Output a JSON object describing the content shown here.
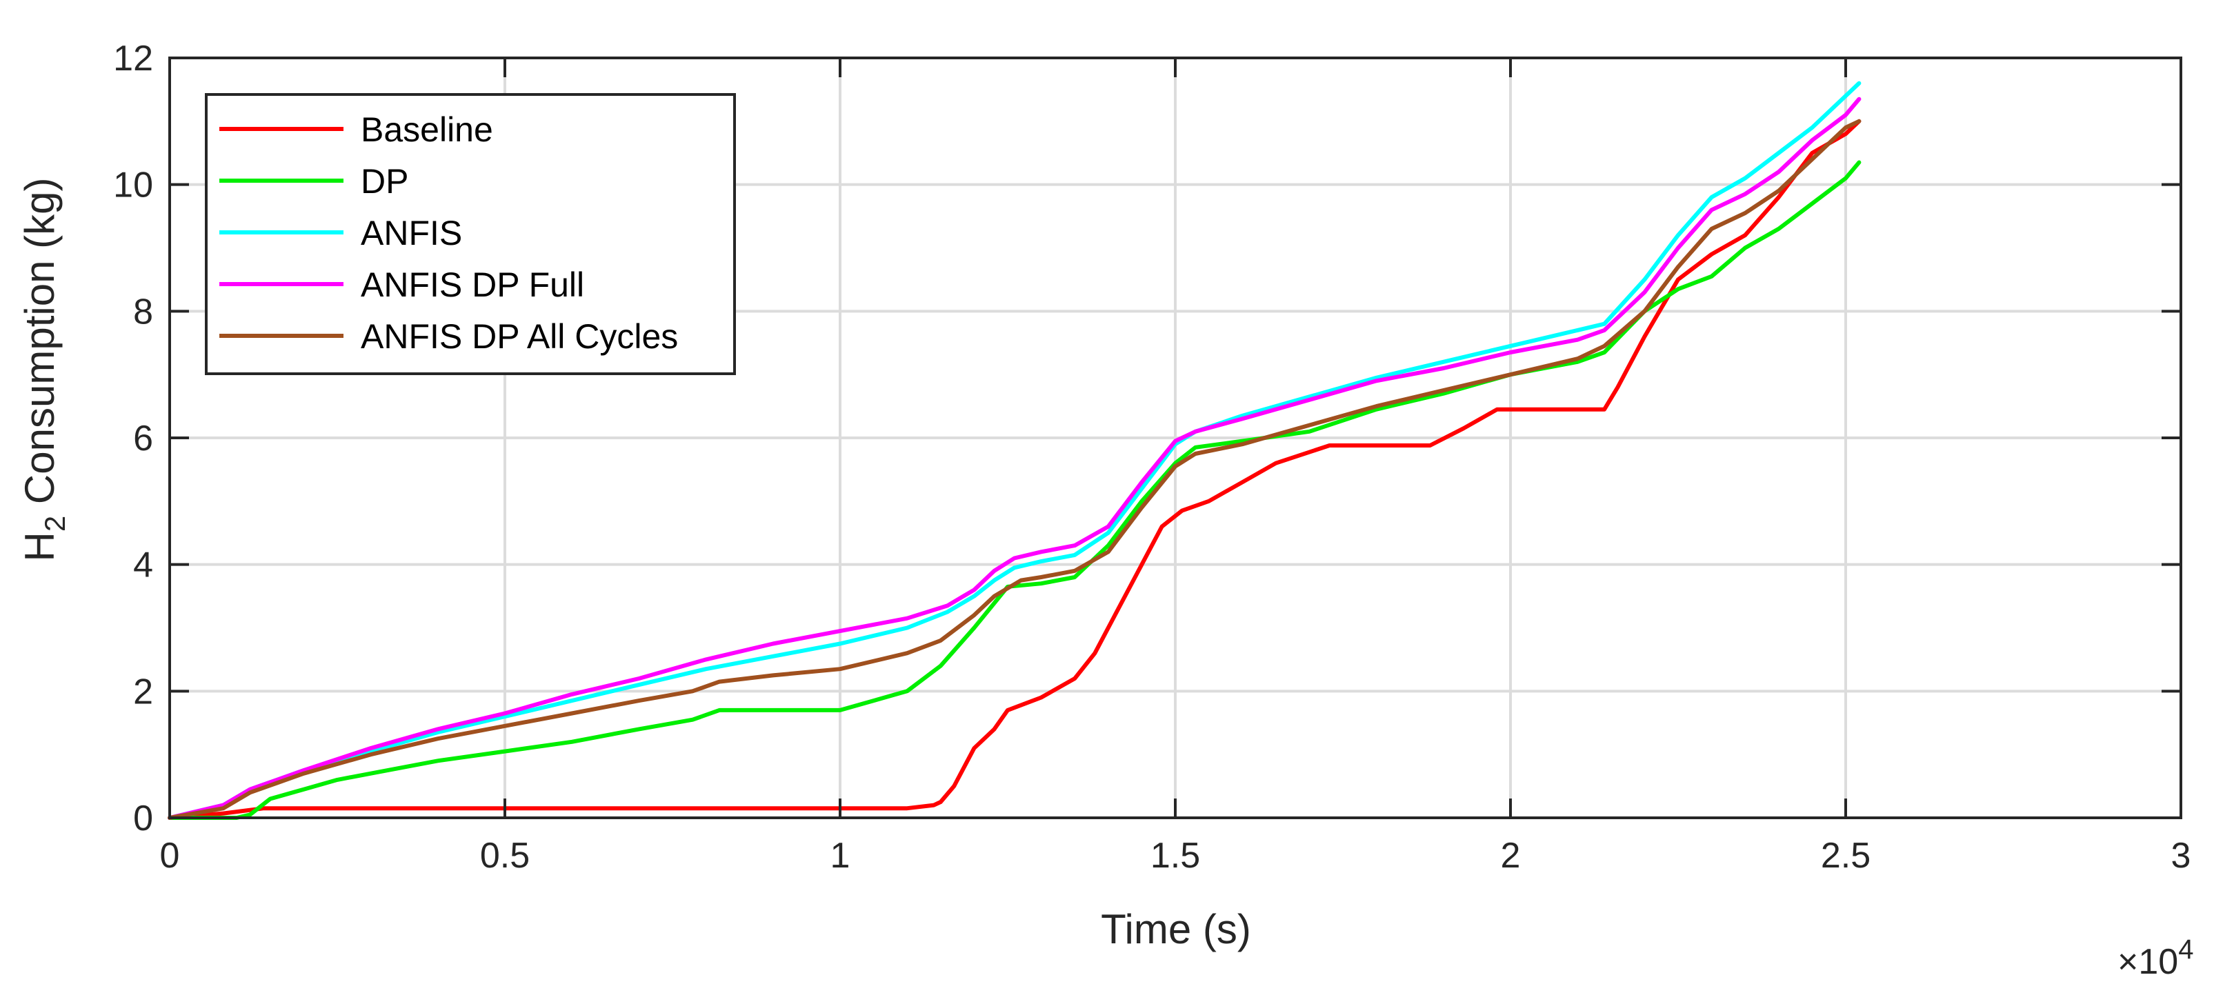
{
  "chart_data": {
    "type": "line",
    "title": "",
    "xlabel": "Time (s)",
    "ylabel": {
      "prefix": "H",
      "subscript": "2",
      "suffix": " Consumption (kg)"
    },
    "xlim": [
      0,
      30000
    ],
    "ylim": [
      0,
      12
    ],
    "x_ticks": [
      0,
      5000,
      10000,
      15000,
      20000,
      25000,
      30000
    ],
    "x_tick_labels": [
      "0",
      "0.5",
      "1",
      "1.5",
      "2",
      "2.5",
      "3"
    ],
    "x_exponent": {
      "base": "×10",
      "power": "4"
    },
    "y_ticks": [
      0,
      2,
      4,
      6,
      8,
      10,
      12
    ],
    "y_tick_labels": [
      "0",
      "2",
      "4",
      "6",
      "8",
      "10",
      "12"
    ],
    "grid": true,
    "legend_position": "top-left",
    "series": [
      {
        "name": "Baseline",
        "color": "#ff0000",
        "x": [
          0,
          800,
          1400,
          11000,
          11400,
          11500,
          11700,
          12000,
          12300,
          12500,
          13000,
          13500,
          13800,
          14100,
          14500,
          14800,
          15100,
          15500,
          16000,
          16500,
          17300,
          18800,
          19300,
          19800,
          21400,
          21600,
          22000,
          22500,
          23000,
          23500,
          24000,
          24500,
          25000,
          25200
        ],
        "y": [
          0,
          0.07,
          0.15,
          0.15,
          0.2,
          0.25,
          0.5,
          1.1,
          1.4,
          1.7,
          1.9,
          2.2,
          2.6,
          3.2,
          4.0,
          4.6,
          4.85,
          5.0,
          5.3,
          5.6,
          5.88,
          5.88,
          6.15,
          6.45,
          6.45,
          6.8,
          7.6,
          8.5,
          8.9,
          9.2,
          9.8,
          10.5,
          10.8,
          11.0
        ]
      },
      {
        "name": "DP",
        "color": "#00ee00",
        "x": [
          0,
          1000,
          1200,
          1500,
          2000,
          2500,
          3000,
          4000,
          5000,
          6000,
          7000,
          7800,
          8200,
          9000,
          10000,
          10500,
          11000,
          11500,
          12000,
          12500,
          13000,
          13500,
          14000,
          14500,
          15000,
          15300,
          16000,
          17000,
          18000,
          19000,
          20000,
          21000,
          21400,
          22000,
          22500,
          23000,
          23500,
          24000,
          24500,
          25000,
          25200
        ],
        "y": [
          0,
          0,
          0.05,
          0.3,
          0.45,
          0.6,
          0.7,
          0.9,
          1.05,
          1.2,
          1.4,
          1.55,
          1.7,
          1.7,
          1.7,
          1.85,
          2.0,
          2.4,
          3.0,
          3.65,
          3.7,
          3.8,
          4.3,
          5.0,
          5.6,
          5.85,
          5.95,
          6.1,
          6.45,
          6.7,
          7.0,
          7.2,
          7.35,
          8.0,
          8.35,
          8.55,
          9.0,
          9.3,
          9.7,
          10.1,
          10.35
        ]
      },
      {
        "name": "ANFIS",
        "color": "#00ffff",
        "x": [
          0,
          800,
          1200,
          1600,
          2000,
          3000,
          4000,
          5000,
          6000,
          7000,
          8000,
          9000,
          10000,
          11000,
          11600,
          12000,
          12300,
          12600,
          13000,
          13500,
          14000,
          14500,
          15000,
          15300,
          16000,
          17000,
          18000,
          19000,
          20000,
          21000,
          21400,
          22000,
          22500,
          23000,
          23500,
          24000,
          24500,
          25000,
          25200
        ],
        "y": [
          0,
          0.2,
          0.45,
          0.6,
          0.75,
          1.05,
          1.35,
          1.6,
          1.85,
          2.1,
          2.35,
          2.55,
          2.75,
          3.0,
          3.25,
          3.5,
          3.75,
          3.95,
          4.05,
          4.15,
          4.5,
          5.2,
          5.9,
          6.1,
          6.35,
          6.65,
          6.95,
          7.2,
          7.45,
          7.7,
          7.8,
          8.5,
          9.2,
          9.8,
          10.1,
          10.5,
          10.9,
          11.4,
          11.6
        ]
      },
      {
        "name": "ANFIS DP Full",
        "color": "#ff00ff",
        "x": [
          0,
          800,
          1200,
          1600,
          2000,
          3000,
          4000,
          5000,
          6000,
          7000,
          8000,
          9000,
          10000,
          11000,
          11600,
          12000,
          12300,
          12600,
          13000,
          13500,
          14000,
          14500,
          15000,
          15300,
          16000,
          17000,
          18000,
          19000,
          20000,
          21000,
          21400,
          22000,
          22500,
          23000,
          23500,
          24000,
          24500,
          25000,
          25200
        ],
        "y": [
          0,
          0.2,
          0.45,
          0.6,
          0.75,
          1.1,
          1.4,
          1.65,
          1.95,
          2.2,
          2.5,
          2.75,
          2.95,
          3.15,
          3.35,
          3.6,
          3.9,
          4.1,
          4.2,
          4.3,
          4.6,
          5.3,
          5.95,
          6.1,
          6.3,
          6.6,
          6.9,
          7.1,
          7.35,
          7.55,
          7.7,
          8.3,
          9.0,
          9.6,
          9.85,
          10.2,
          10.7,
          11.1,
          11.35
        ]
      },
      {
        "name": "ANFIS DP All Cycles",
        "color": "#a0501e",
        "x": [
          0,
          800,
          1200,
          1600,
          2000,
          3000,
          4000,
          5000,
          6000,
          7000,
          7800,
          8200,
          9000,
          10000,
          11000,
          11500,
          12000,
          12300,
          12700,
          13000,
          13500,
          14000,
          14500,
          15000,
          15300,
          16000,
          17000,
          18000,
          19000,
          20000,
          21000,
          21400,
          22000,
          22500,
          23000,
          23500,
          24000,
          24500,
          25000,
          25200
        ],
        "y": [
          0,
          0.15,
          0.4,
          0.55,
          0.7,
          1.0,
          1.25,
          1.45,
          1.65,
          1.85,
          2.0,
          2.15,
          2.25,
          2.35,
          2.6,
          2.8,
          3.2,
          3.5,
          3.75,
          3.8,
          3.9,
          4.2,
          4.9,
          5.55,
          5.75,
          5.9,
          6.2,
          6.5,
          6.75,
          7.0,
          7.25,
          7.45,
          8.0,
          8.7,
          9.3,
          9.55,
          9.9,
          10.4,
          10.9,
          11.0
        ]
      }
    ]
  }
}
